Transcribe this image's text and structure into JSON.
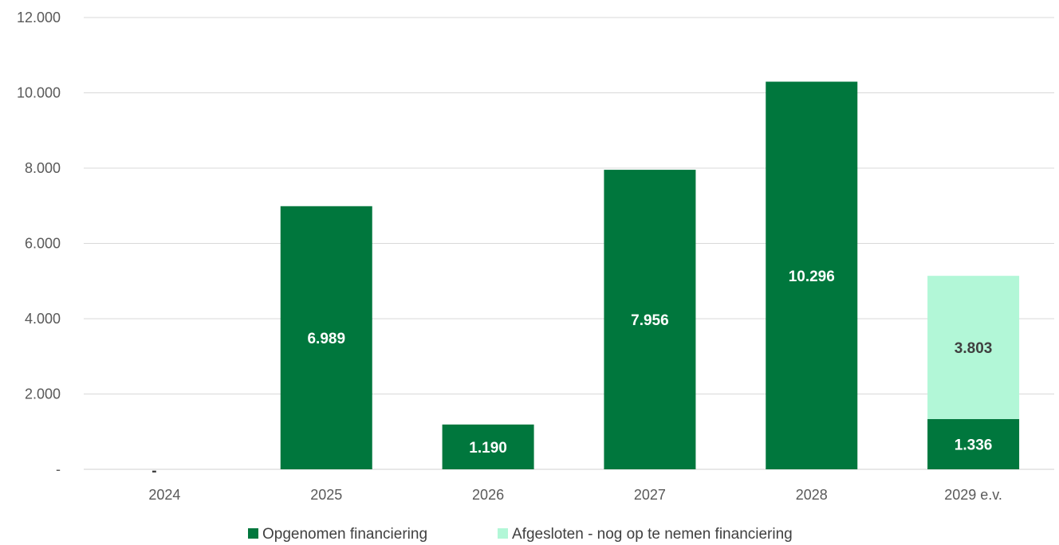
{
  "chart_data": {
    "type": "bar",
    "stacked": true,
    "title": "",
    "xlabel": "",
    "ylabel": "",
    "categories": [
      "2024",
      "2025",
      "2026",
      "2027",
      "2028",
      "2029 e.v."
    ],
    "ylim": [
      0,
      12000
    ],
    "yticks": [
      0,
      2000,
      4000,
      6000,
      8000,
      10000,
      12000
    ],
    "ytick_labels": [
      "-",
      "2.000",
      "4.000",
      "6.000",
      "8.000",
      "10.000",
      "12.000"
    ],
    "grid": true,
    "legend_position": "bottom",
    "series": [
      {
        "name": "Opgenomen financiering",
        "color": "#00773d",
        "label_color": "#ffffff",
        "values": [
          0,
          6989,
          1190,
          7956,
          10296,
          1336
        ],
        "labels": [
          "-",
          "6.989",
          "1.190",
          "7.956",
          "10.296",
          "1.336"
        ]
      },
      {
        "name": "Afgesloten - nog op te nemen financiering",
        "color": "#b2f7d7",
        "label_color": "#404040",
        "values": [
          0,
          0,
          0,
          0,
          0,
          3803
        ],
        "labels": [
          "",
          "",
          "",
          "",
          "",
          "3.803"
        ]
      }
    ]
  }
}
